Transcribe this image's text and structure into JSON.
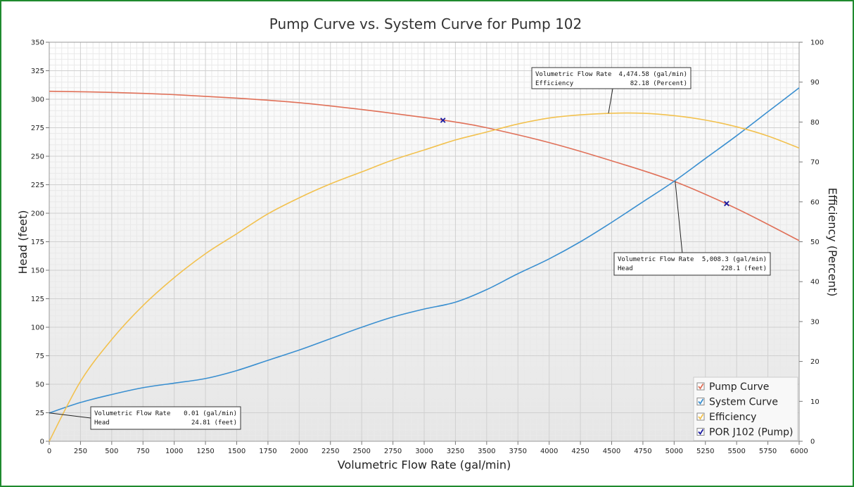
{
  "chart_data": {
    "type": "line",
    "title": "Pump Curve vs. System Curve for Pump 102",
    "xlabel": "Volumetric Flow Rate (gal/min)",
    "ylabel": "Head (feet)",
    "y2label": "Efficiency (Percent)",
    "xlim": [
      0,
      6000
    ],
    "ylim": [
      0,
      350
    ],
    "y2lim": [
      0,
      100
    ],
    "x_ticks": [
      0,
      250,
      500,
      750,
      1000,
      1250,
      1500,
      1750,
      2000,
      2250,
      2500,
      2750,
      3000,
      3250,
      3500,
      3750,
      4000,
      4250,
      4500,
      4750,
      5000,
      5250,
      5500,
      5750,
      6000
    ],
    "y_ticks": [
      0,
      25,
      50,
      75,
      100,
      125,
      150,
      175,
      200,
      225,
      250,
      275,
      300,
      325,
      350
    ],
    "y2_ticks": [
      0,
      10,
      20,
      30,
      40,
      50,
      60,
      70,
      80,
      90,
      100
    ],
    "grid": true,
    "legend_position": "bottom-right",
    "series": [
      {
        "name": "Pump Curve",
        "axis": "left",
        "color": "#e07058",
        "x": [
          0,
          500,
          1000,
          1500,
          2000,
          2500,
          3000,
          3250,
          3500,
          4000,
          4500,
          5000,
          5500,
          6000
        ],
        "y": [
          307,
          306,
          304,
          301,
          297,
          291,
          284,
          280,
          275,
          262,
          246,
          228,
          204,
          176
        ]
      },
      {
        "name": "System Curve",
        "axis": "left",
        "color": "#3a8fd0",
        "x": [
          0,
          250,
          500,
          750,
          1000,
          1250,
          1500,
          1750,
          2000,
          2250,
          2500,
          2750,
          3000,
          3250,
          3500,
          3750,
          4000,
          4250,
          4500,
          4750,
          5000,
          5250,
          5500,
          5750,
          6000
        ],
        "y": [
          24.8,
          34,
          41,
          47,
          51,
          55,
          62,
          71,
          80,
          90,
          100,
          109,
          116,
          122,
          133,
          147,
          160,
          175,
          192,
          210,
          228,
          248,
          268,
          289,
          310
        ]
      },
      {
        "name": "Efficiency",
        "axis": "right",
        "color": "#f2c14e",
        "x": [
          0,
          250,
          500,
          750,
          1000,
          1250,
          1500,
          1750,
          2000,
          2250,
          2500,
          2750,
          3000,
          3250,
          3500,
          3750,
          4000,
          4250,
          4500,
          4750,
          5000,
          5250,
          5500,
          5750,
          6000
        ],
        "y": [
          0,
          15,
          25.5,
          34,
          41,
          47,
          52,
          57,
          61,
          64.5,
          67.5,
          70.5,
          73,
          75.5,
          77.5,
          79.5,
          81,
          81.8,
          82.2,
          82.2,
          81.6,
          80.5,
          78.8,
          76.5,
          73.5
        ]
      },
      {
        "name": "POR J102 (Pump)",
        "axis": "left",
        "color": "#1a1aa0",
        "marker": "x",
        "x": [
          3150,
          5420
        ],
        "y": [
          281.5,
          208.5
        ]
      }
    ],
    "annotations": [
      {
        "x": 0.01,
        "y": 24.81,
        "axis": "left",
        "line1_label": "Volumetric Flow Rate",
        "line1_value": "0.01 (gal/min)",
        "line2_label": "Head",
        "line2_value": "24.81 (feet)"
      },
      {
        "x": 4474.58,
        "y": 82.18,
        "axis": "right",
        "line1_label": "Volumetric Flow Rate",
        "line1_value": "4,474.58 (gal/min)",
        "line2_label": "Efficiency",
        "line2_value": "82.18 (Percent)"
      },
      {
        "x": 5008.3,
        "y": 228.1,
        "axis": "left",
        "line1_label": "Volumetric Flow Rate",
        "line1_value": "5,008.3 (gal/min)",
        "line2_label": "Head",
        "line2_value": "228.1 (feet)"
      }
    ]
  }
}
